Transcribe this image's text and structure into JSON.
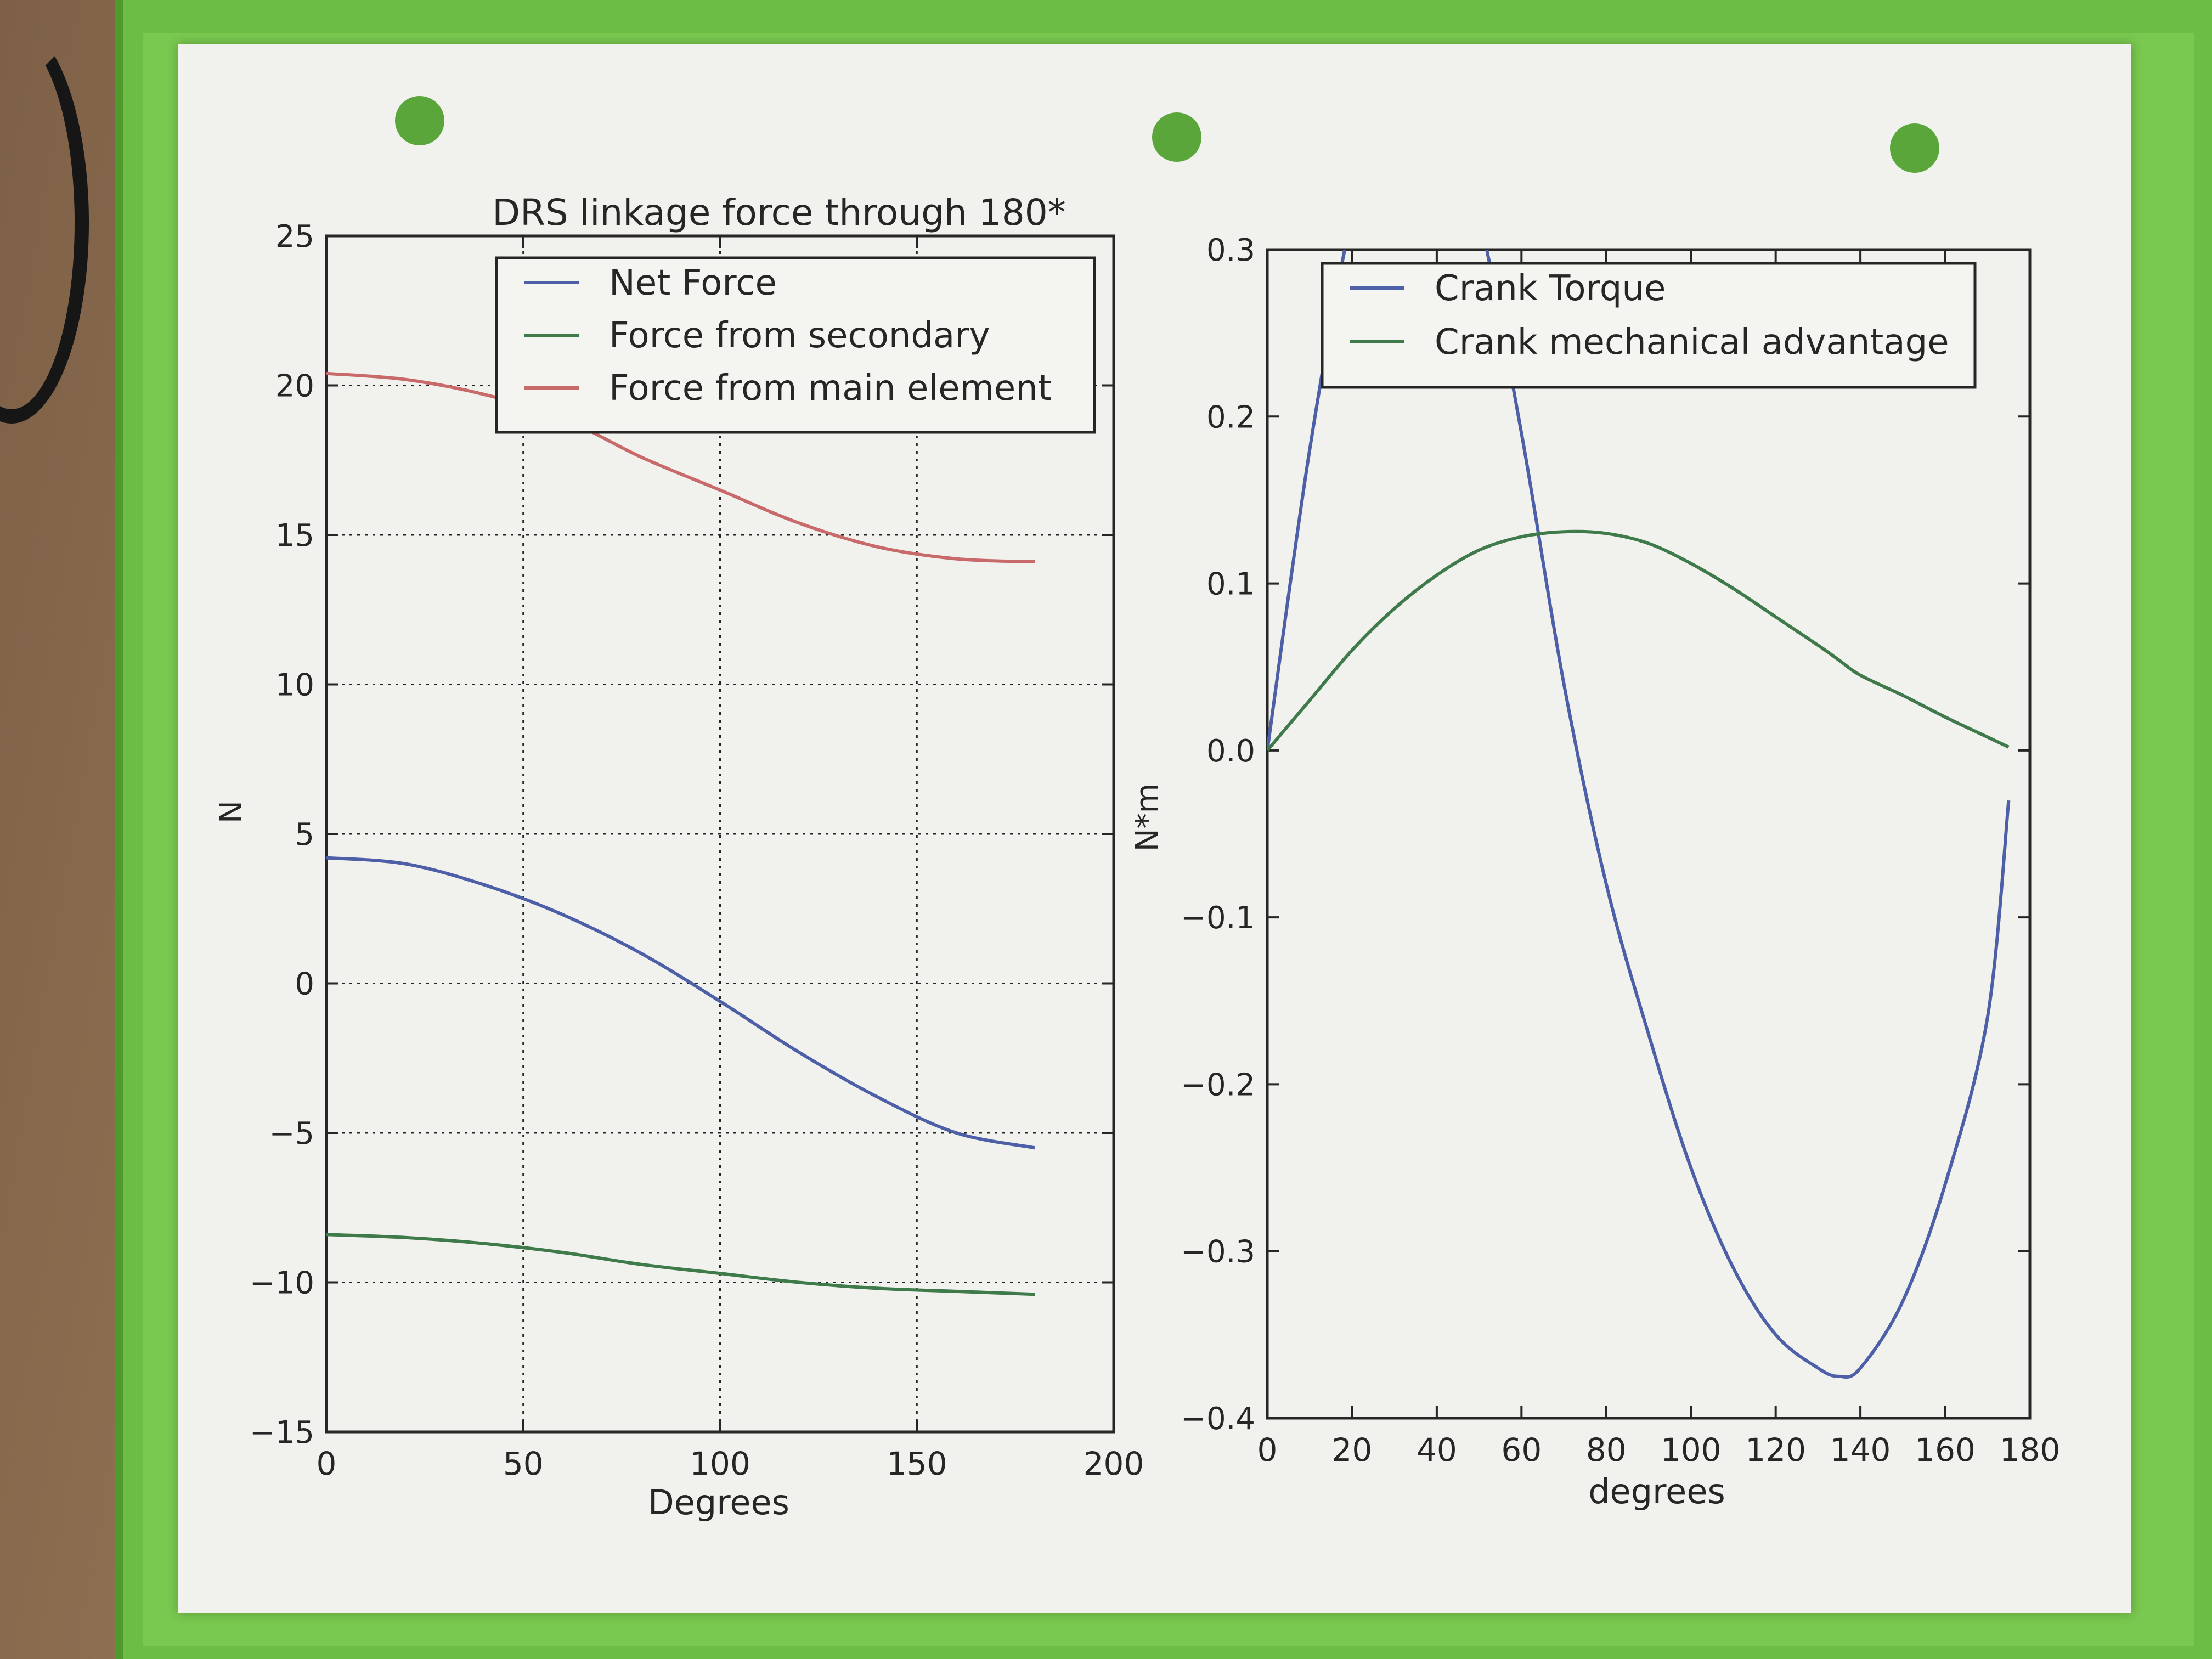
{
  "colors": {
    "paper": "#f1f1ee",
    "sleeve": "#6cbd45",
    "blue": "#4d5fa6",
    "green": "#3f7a4a",
    "red": "#c96a6a",
    "ink": "#262626"
  },
  "chart_data": [
    {
      "type": "line",
      "title": "DRS linkage force through 180*",
      "xlabel": "Degrees",
      "ylabel": "N",
      "xlim": [
        0,
        200
      ],
      "ylim": [
        -15,
        25
      ],
      "xticks": [
        0,
        50,
        100,
        150,
        200
      ],
      "yticks": [
        -15,
        -10,
        -5,
        0,
        5,
        10,
        15,
        20,
        25
      ],
      "xtick_labels": [
        "0",
        "50",
        "100",
        "150",
        "200"
      ],
      "ytick_labels": [
        "−15",
        "−10",
        "−5",
        "0",
        "5",
        "10",
        "15",
        "20",
        "25"
      ],
      "grid": true,
      "legend_position": "upper right",
      "x": [
        0,
        20,
        40,
        60,
        80,
        100,
        120,
        140,
        160,
        180
      ],
      "series": [
        {
          "name": "Net Force",
          "color": "#4d5fa6",
          "values": [
            4.2,
            4.0,
            3.3,
            2.3,
            1.0,
            -0.6,
            -2.3,
            -3.8,
            -5.0,
            -5.5
          ]
        },
        {
          "name": "Force from secondary",
          "color": "#3f7a4a",
          "values": [
            -8.4,
            -8.5,
            -8.7,
            -9.0,
            -9.4,
            -9.7,
            -10.0,
            -10.2,
            -10.3,
            -10.4
          ]
        },
        {
          "name": "Force from main element",
          "color": "#c96a6a",
          "values": [
            20.4,
            20.2,
            19.7,
            18.9,
            17.6,
            16.5,
            15.4,
            14.6,
            14.2,
            14.1
          ]
        }
      ]
    },
    {
      "type": "line",
      "title": "",
      "xlabel": "degrees",
      "ylabel": "N*m",
      "xlim": [
        0,
        180
      ],
      "ylim": [
        -0.4,
        0.3
      ],
      "xticks": [
        0,
        20,
        40,
        60,
        80,
        100,
        120,
        140,
        160,
        180
      ],
      "yticks": [
        -0.4,
        -0.3,
        -0.2,
        -0.1,
        0.0,
        0.1,
        0.2,
        0.3
      ],
      "xtick_labels": [
        "0",
        "20",
        "40",
        "60",
        "80",
        "100",
        "120",
        "140",
        "160",
        "180"
      ],
      "ytick_labels": [
        "−0.4",
        "−0.3",
        "−0.2",
        "−0.1",
        "0.0",
        "0.1",
        "0.2",
        "0.3"
      ],
      "grid": false,
      "legend_position": "upper right",
      "x": [
        0,
        10,
        20,
        30,
        40,
        50,
        60,
        70,
        80,
        90,
        100,
        110,
        120,
        130,
        135,
        140,
        150,
        160,
        170,
        175
      ],
      "series": [
        {
          "name": "Crank Torque",
          "color": "#4d5fa6",
          "values": [
            0.0,
            0.18,
            0.32,
            0.4,
            0.4,
            0.32,
            0.19,
            0.04,
            -0.08,
            -0.17,
            -0.25,
            -0.31,
            -0.35,
            -0.37,
            -0.375,
            -0.37,
            -0.33,
            -0.26,
            -0.16,
            -0.03
          ]
        },
        {
          "name": "Crank mechanical advantage",
          "color": "#3f7a4a",
          "values": [
            0.0,
            0.03,
            0.06,
            0.085,
            0.105,
            0.12,
            0.128,
            0.131,
            0.13,
            0.124,
            0.112,
            0.097,
            0.08,
            0.063,
            0.054,
            0.045,
            0.033,
            0.02,
            0.008,
            0.002
          ]
        }
      ]
    }
  ]
}
